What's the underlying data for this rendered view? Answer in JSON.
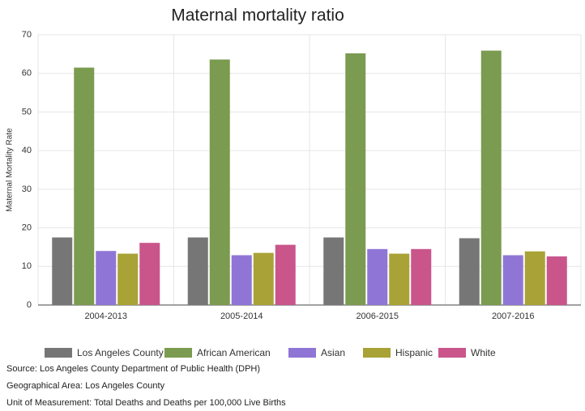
{
  "chart_data": {
    "type": "bar",
    "title": "Maternal mortality ratio",
    "y_label": "Maternal Mortality Rate",
    "categories": [
      "2004-2013",
      "2005-2014",
      "2006-2015",
      "2007-2016"
    ],
    "series": [
      {
        "name": "Los Angeles County",
        "color": "#767676",
        "values": [
          17.5,
          17.5,
          17.5,
          17.3
        ]
      },
      {
        "name": "African American",
        "color": "#7b9b50",
        "values": [
          61.5,
          63.6,
          65.2,
          65.9
        ]
      },
      {
        "name": "Asian",
        "color": "#8f76d6",
        "values": [
          14.0,
          12.9,
          14.5,
          12.9
        ]
      },
      {
        "name": "Hispanic",
        "color": "#a9a236",
        "values": [
          13.3,
          13.5,
          13.3,
          13.9
        ]
      },
      {
        "name": "White",
        "color": "#c9558b",
        "values": [
          16.1,
          15.6,
          14.5,
          12.6
        ]
      }
    ],
    "ylim": [
      0,
      70
    ],
    "yticks": [
      0,
      10,
      20,
      30,
      40,
      50,
      60,
      70
    ],
    "grid": true,
    "notes": [
      "Source: Los Angeles County Department of Public Health (DPH)",
      "Geographical Area: Los Angeles County",
      "Unit of Measurement: Total Deaths and Deaths per 100,000 Live Births"
    ]
  }
}
